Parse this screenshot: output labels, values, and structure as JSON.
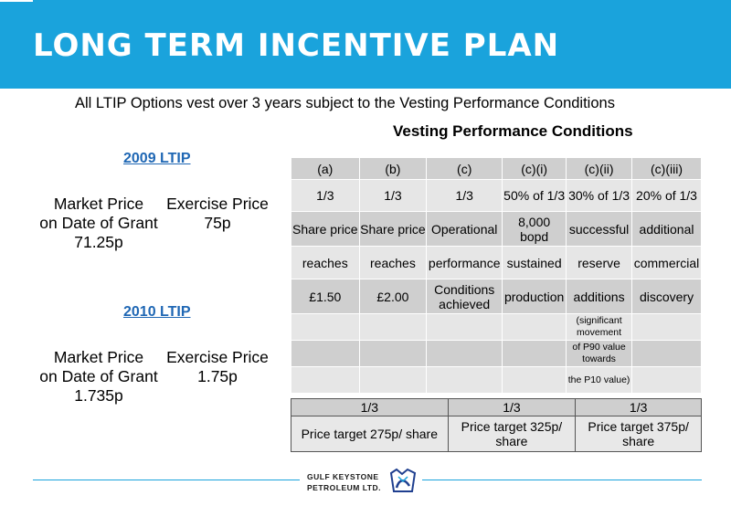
{
  "header": {
    "title": "LONG TERM INCENTIVE PLAN"
  },
  "subtitle": "All LTIP Options vest over 3 years subject to the Vesting Performance Conditions",
  "vesting_heading": "Vesting Performance Conditions",
  "ltip_2009": {
    "heading": "2009 LTIP",
    "market_price": [
      "Market Price",
      "on Date of Grant",
      "71.25p"
    ],
    "exercise_price": [
      "Exercise Price",
      "75p"
    ]
  },
  "ltip_2010": {
    "heading": "2010 LTIP",
    "market_price": [
      "Market Price",
      "on Date of Grant",
      "1.735p"
    ],
    "exercise_price": [
      "Exercise Price",
      "1.75p"
    ]
  },
  "conditions_table": {
    "rows": [
      [
        "(a)",
        "(b)",
        "(c)",
        "(c)(i)",
        "(c)(ii)",
        "(c)(iii)"
      ],
      [
        "1/3",
        "1/3",
        "1/3",
        "50% of 1/3",
        "30% of 1/3",
        "20% of 1/3"
      ],
      [
        "Share price",
        "Share price",
        "Operational",
        "8,000 bopd",
        "successful",
        "additional"
      ],
      [
        "reaches",
        "reaches",
        "performance",
        "sustained",
        "reserve",
        "commercial"
      ],
      [
        "£1.50",
        "£2.00",
        "Conditions achieved",
        "production",
        "additions",
        "discovery"
      ],
      [
        "",
        "",
        "",
        "",
        "(significant movement",
        ""
      ],
      [
        "",
        "",
        "",
        "",
        "of P90 value towards",
        ""
      ],
      [
        "",
        "",
        "",
        "",
        "the P10 value)",
        ""
      ]
    ]
  },
  "price_targets": {
    "fractions": [
      "1/3",
      "1/3",
      "1/3"
    ],
    "targets": [
      "Price target 275p/ share",
      "Price target 325p/ share",
      "Price target 375p/ share"
    ]
  },
  "footer": {
    "logo_line1": "GULF KEYSTONE",
    "logo_line2": "PETROLEUM LTD."
  },
  "colors": {
    "banner": "#1aa3dc",
    "ltip_heading": "#1f67b4",
    "table_dark": "#cfcfcf",
    "table_light": "#e6e6e6"
  }
}
